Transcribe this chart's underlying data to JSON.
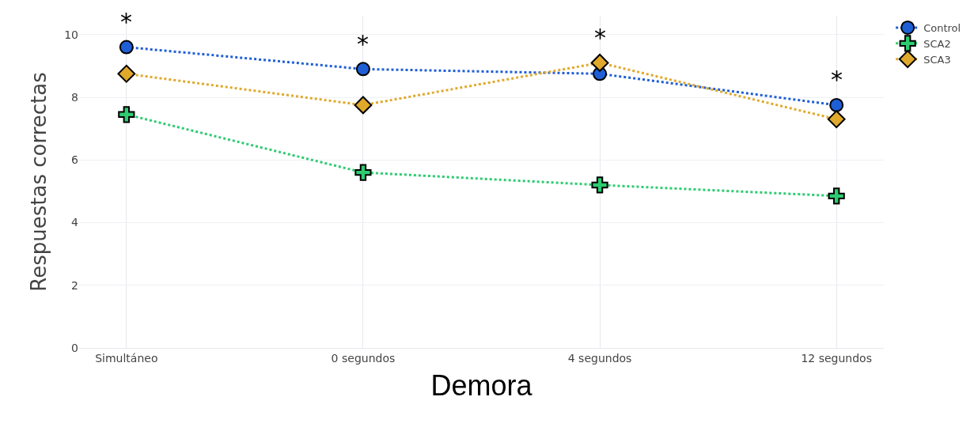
{
  "chart_data": {
    "type": "line",
    "xlabel": "Demora",
    "ylabel": "Respuestas correctas",
    "categories": [
      "Simultáneo",
      "0 segundos",
      "4 segundos",
      "12 segundos"
    ],
    "series": [
      {
        "name": "Control",
        "color": "#1f5fd6",
        "values": [
          9.6,
          8.9,
          8.75,
          7.75
        ],
        "marker": "circle",
        "line_style": "dotted"
      },
      {
        "name": "SCA2",
        "color": "#2ecc71",
        "values": [
          7.45,
          5.6,
          5.2,
          4.85
        ],
        "marker": "cross",
        "line_style": "dotted"
      },
      {
        "name": "SCA3",
        "color": "#e0a92c",
        "values": [
          8.75,
          7.75,
          9.1,
          7.3
        ],
        "marker": "diamond",
        "line_style": "dotted"
      }
    ],
    "annotations": [
      "*",
      "*",
      "*",
      "*"
    ],
    "ylim": [
      0,
      10.6
    ],
    "yticks": [
      0,
      2,
      4,
      6,
      8,
      10
    ],
    "grid": true,
    "legend": "top right"
  }
}
